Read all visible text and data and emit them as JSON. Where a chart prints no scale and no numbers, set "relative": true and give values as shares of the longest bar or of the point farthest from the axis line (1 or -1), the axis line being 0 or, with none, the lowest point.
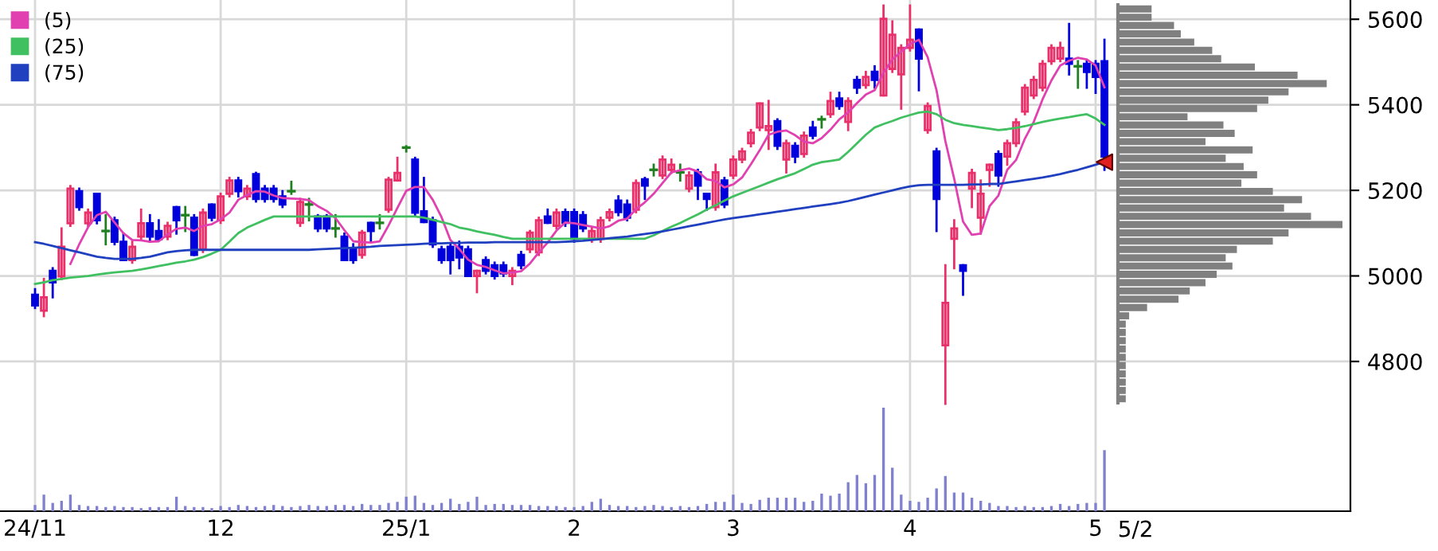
{
  "chart_data": [
    {
      "type": "candlestick",
      "categories": [
        "24/11",
        null,
        null,
        null,
        null,
        null,
        null,
        null,
        null,
        null,
        null,
        null,
        null,
        null,
        null,
        null,
        null,
        null,
        null,
        null,
        null,
        "12",
        null,
        null,
        null,
        null,
        null,
        null,
        null,
        null,
        null,
        null,
        null,
        null,
        null,
        null,
        null,
        null,
        null,
        null,
        null,
        null,
        "25/1",
        null,
        null,
        null,
        null,
        null,
        null,
        null,
        null,
        null,
        null,
        null,
        null,
        null,
        null,
        null,
        null,
        null,
        null,
        "2",
        null,
        null,
        null,
        null,
        null,
        null,
        null,
        null,
        null,
        null,
        null,
        null,
        null,
        null,
        null,
        null,
        null,
        "3",
        null,
        null,
        null,
        null,
        null,
        null,
        null,
        null,
        null,
        null,
        null,
        null,
        null,
        null,
        null,
        null,
        null,
        null,
        null,
        "4",
        null,
        null,
        null,
        null,
        null,
        null,
        null,
        null,
        null,
        null,
        null,
        null,
        null,
        null,
        null,
        null,
        null,
        null,
        null,
        null,
        "5",
        null
      ],
      "ohlc": [
        [
          4956,
          4969,
          4925,
          4931
        ],
        [
          4919,
          4993,
          4906,
          4950
        ],
        [
          5012,
          5018,
          4950,
          4985
        ],
        [
          4999,
          5111,
          4993,
          5068
        ],
        [
          5123,
          5210,
          5117,
          5204
        ],
        [
          5198,
          5204,
          5155,
          5161
        ],
        [
          5123,
          5155,
          5117,
          5148
        ],
        [
          5192,
          5192,
          5123,
          5130
        ],
        [
          5105,
          5142,
          5074,
          5105
        ],
        [
          5130,
          5136,
          5074,
          5080
        ],
        [
          5080,
          5099,
          5037,
          5037
        ],
        [
          5037,
          5080,
          5031,
          5068
        ],
        [
          5092,
          5155,
          5086,
          5123
        ],
        [
          5123,
          5142,
          5080,
          5092
        ],
        [
          5105,
          5130,
          5086,
          5086
        ],
        [
          5092,
          5124,
          5086,
          5117
        ],
        [
          5161,
          5161,
          5099,
          5130
        ],
        [
          5142,
          5161,
          5105,
          5142
        ],
        [
          5136,
          5142,
          5049,
          5049
        ],
        [
          5062,
          5155,
          5056,
          5148
        ],
        [
          5167,
          5167,
          5130,
          5136
        ],
        [
          5130,
          5192,
          5124,
          5186
        ],
        [
          5192,
          5229,
          5186,
          5223
        ],
        [
          5223,
          5229,
          5186,
          5198
        ],
        [
          5186,
          5210,
          5180,
          5204
        ],
        [
          5238,
          5241,
          5174,
          5180
        ],
        [
          5204,
          5210,
          5174,
          5180
        ],
        [
          5204,
          5210,
          5174,
          5180
        ],
        [
          5186,
          5198,
          5161,
          5167
        ],
        [
          5198,
          5220,
          5192,
          5198
        ],
        [
          5124,
          5180,
          5117,
          5173
        ],
        [
          5167,
          5180,
          5130,
          5167
        ],
        [
          5139,
          5142,
          5105,
          5111
        ],
        [
          5139,
          5142,
          5105,
          5111
        ],
        [
          5111,
          5142,
          5092,
          5111
        ],
        [
          5092,
          5099,
          5037,
          5037
        ],
        [
          5062,
          5074,
          5031,
          5037
        ],
        [
          5049,
          5105,
          5043,
          5101
        ],
        [
          5124,
          5124,
          5080,
          5105
        ],
        [
          5124,
          5142,
          5111,
          5124
        ],
        [
          5155,
          5229,
          5150,
          5225
        ],
        [
          5223,
          5276,
          5223,
          5241
        ],
        [
          5300,
          5303,
          5291,
          5300
        ],
        [
          5272,
          5276,
          5142,
          5148
        ],
        [
          5151,
          5229,
          5126,
          5126
        ],
        [
          5130,
          5136,
          5068,
          5074
        ],
        [
          5062,
          5068,
          5031,
          5037
        ],
        [
          5068,
          5074,
          5006,
          5037
        ],
        [
          5068,
          5080,
          5018,
          5043
        ],
        [
          5062,
          5068,
          5000,
          5000
        ],
        [
          5000,
          5012,
          4962,
          5012
        ],
        [
          5037,
          5043,
          5006,
          5012
        ],
        [
          5025,
          5031,
          4994,
          5000
        ],
        [
          5025,
          5031,
          5000,
          5006
        ],
        [
          5000,
          5018,
          4981,
          5012
        ],
        [
          5049,
          5056,
          5018,
          5025
        ],
        [
          5062,
          5105,
          5056,
          5101
        ],
        [
          5055,
          5136,
          5049,
          5130
        ],
        [
          5139,
          5155,
          5124,
          5124
        ],
        [
          5117,
          5155,
          5111,
          5148
        ],
        [
          5149,
          5155,
          5117,
          5124
        ],
        [
          5149,
          5155,
          5080,
          5087
        ],
        [
          5142,
          5149,
          5105,
          5111
        ],
        [
          5087,
          5111,
          5080,
          5105
        ],
        [
          5087,
          5136,
          5080,
          5130
        ],
        [
          5136,
          5155,
          5130,
          5149
        ],
        [
          5176,
          5186,
          5142,
          5149
        ],
        [
          5167,
          5176,
          5130,
          5136
        ],
        [
          5155,
          5223,
          5149,
          5217
        ],
        [
          5226,
          5229,
          5180,
          5211
        ],
        [
          5248,
          5260,
          5235,
          5248
        ],
        [
          5235,
          5279,
          5229,
          5272
        ],
        [
          5248,
          5272,
          5241,
          5260
        ],
        [
          5242,
          5260,
          5223,
          5242
        ],
        [
          5204,
          5242,
          5198,
          5235
        ],
        [
          5242,
          5248,
          5180,
          5211
        ],
        [
          5192,
          5192,
          5155,
          5180
        ],
        [
          5161,
          5260,
          5155,
          5242
        ],
        [
          5223,
          5229,
          5161,
          5167
        ],
        [
          5235,
          5279,
          5229,
          5272
        ],
        [
          5272,
          5297,
          5266,
          5291
        ],
        [
          5310,
          5341,
          5303,
          5335
        ],
        [
          5347,
          5403,
          5341,
          5403
        ],
        [
          5341,
          5409,
          5297,
          5350
        ],
        [
          5362,
          5366,
          5297,
          5304
        ],
        [
          5272,
          5316,
          5242,
          5310
        ],
        [
          5304,
          5310,
          5266,
          5279
        ],
        [
          5285,
          5335,
          5279,
          5328
        ],
        [
          5347,
          5360,
          5322,
          5328
        ],
        [
          5366,
          5372,
          5347,
          5366
        ],
        [
          5378,
          5428,
          5372,
          5409
        ],
        [
          5415,
          5428,
          5391,
          5397
        ],
        [
          5360,
          5415,
          5341,
          5409
        ],
        [
          5458,
          5465,
          5428,
          5440
        ],
        [
          5446,
          5477,
          5440,
          5465
        ],
        [
          5477,
          5490,
          5440,
          5458
        ],
        [
          5422,
          5632,
          5422,
          5601
        ],
        [
          5484,
          5595,
          5477,
          5564
        ],
        [
          5471,
          5539,
          5391,
          5533
        ],
        [
          5533,
          5632,
          5527,
          5552
        ],
        [
          5576,
          5576,
          5434,
          5508
        ],
        [
          5341,
          5403,
          5335,
          5397
        ],
        [
          5291,
          5297,
          5105,
          5180
        ],
        [
          4838,
          5025,
          4701,
          4937
        ],
        [
          5087,
          5130,
          5018,
          5111
        ],
        [
          5025,
          5025,
          4956,
          5012
        ],
        [
          5204,
          5248,
          5161,
          5241
        ],
        [
          5136,
          5223,
          5099,
          5192
        ],
        [
          5248,
          5260,
          5211,
          5260
        ],
        [
          5285,
          5291,
          5211,
          5235
        ],
        [
          5279,
          5316,
          5260,
          5310
        ],
        [
          5310,
          5366,
          5304,
          5359
        ],
        [
          5384,
          5446,
          5378,
          5440
        ],
        [
          5422,
          5465,
          5416,
          5458
        ],
        [
          5440,
          5502,
          5434,
          5496
        ],
        [
          5502,
          5539,
          5496,
          5533
        ],
        [
          5508,
          5545,
          5502,
          5533
        ],
        [
          5508,
          5589,
          5471,
          5496
        ],
        [
          5490,
          5502,
          5440,
          5490
        ],
        [
          5496,
          5502,
          5440,
          5477
        ],
        [
          5496,
          5502,
          5428,
          5465
        ],
        [
          5502,
          5552,
          5248,
          5279
        ]
      ],
      "colors": [
        "#0000dd",
        "#e8306a",
        "#0000dd",
        "#e8306a",
        "#e8306a",
        "#0000dd",
        "#e8306a",
        "#0000dd",
        "#208020",
        "#0000dd",
        "#0000dd",
        "#e8306a",
        "#e8306a",
        "#0000dd",
        "#0000dd",
        "#e8306a",
        "#0000dd",
        "#208020",
        "#0000dd",
        "#e8306a",
        "#0000dd",
        "#e8306a",
        "#e8306a",
        "#0000dd",
        "#e8306a",
        "#0000dd",
        "#0000dd",
        "#0000dd",
        "#0000dd",
        "#208020",
        "#e8306a",
        "#208020",
        "#0000dd",
        "#0000dd",
        "#208020",
        "#0000dd",
        "#0000dd",
        "#e8306a",
        "#0000dd",
        "#208020",
        "#e8306a",
        "#e8306a",
        "#208020",
        "#0000dd",
        "#0000dd",
        "#0000dd",
        "#0000dd",
        "#0000dd",
        "#0000dd",
        "#0000dd",
        "#e8306a",
        "#0000dd",
        "#0000dd",
        "#0000dd",
        "#e8306a",
        "#0000dd",
        "#e8306a",
        "#e8306a",
        "#0000dd",
        "#e8306a",
        "#0000dd",
        "#0000dd",
        "#0000dd",
        "#e8306a",
        "#e8306a",
        "#e8306a",
        "#0000dd",
        "#0000dd",
        "#e8306a",
        "#0000dd",
        "#208020",
        "#e8306a",
        "#e8306a",
        "#208020",
        "#e8306a",
        "#0000dd",
        "#0000dd",
        "#e8306a",
        "#0000dd",
        "#e8306a",
        "#e8306a",
        "#e8306a",
        "#e8306a",
        "#e8306a",
        "#0000dd",
        "#e8306a",
        "#0000dd",
        "#e8306a",
        "#0000dd",
        "#208020",
        "#e8306a",
        "#0000dd",
        "#e8306a",
        "#0000dd",
        "#e8306a",
        "#0000dd",
        "#e8306a",
        "#e8306a",
        "#e8306a",
        "#e8306a",
        "#0000dd",
        "#e8306a",
        "#0000dd",
        "#e8306a",
        "#e8306a",
        "#0000dd",
        "#e8306a",
        "#e8306a",
        "#e8306a",
        "#0000dd",
        "#e8306a",
        "#e8306a",
        "#e8306a",
        "#e8306a",
        "#e8306a",
        "#e8306a",
        "#e8306a",
        "#0000dd",
        "#208020",
        "#0000dd",
        "#0000dd",
        "#0000dd"
      ],
      "series": [
        {
          "name": "(5)",
          "type": "line",
          "color": "#e040b0",
          "values": [
            null,
            null,
            null,
            null,
            5028,
            5074,
            5114,
            5142,
            5150,
            5125,
            5100,
            5084,
            5083,
            5080,
            5081,
            5097,
            5110,
            5113,
            5105,
            5117,
            5121,
            5132,
            5148,
            5178,
            5189,
            5198,
            5197,
            5188,
            5182,
            5181,
            5180,
            5177,
            5163,
            5152,
            5135,
            5107,
            5081,
            5079,
            5078,
            5081,
            5118,
            5159,
            5199,
            5208,
            5208,
            5178,
            5137,
            5084,
            5063,
            5038,
            5026,
            5021,
            5013,
            5006,
            5008,
            5011,
            5029,
            5055,
            5078,
            5106,
            5125,
            5123,
            5119,
            5115,
            5111,
            5116,
            5129,
            5134,
            5156,
            5172,
            5192,
            5217,
            5242,
            5247,
            5251,
            5244,
            5226,
            5222,
            5207,
            5214,
            5230,
            5261,
            5294,
            5330,
            5337,
            5340,
            5329,
            5314,
            5310,
            5322,
            5342,
            5366,
            5382,
            5404,
            5424,
            5434,
            5475,
            5506,
            5524,
            5542,
            5552,
            5511,
            5434,
            5315,
            5227,
            5127,
            5096,
            5099,
            5163,
            5188,
            5248,
            5271,
            5321,
            5360,
            5413,
            5457,
            5492,
            5503,
            5510,
            5506,
            5492,
            5441
          ]
        },
        {
          "name": "(25)",
          "type": "line",
          "color": "#40c060",
          "values": [
            4981,
            4985,
            4990,
            4993,
            4996,
            4998,
            5000,
            5003,
            5006,
            5008,
            5010,
            5012,
            5015,
            5019,
            5023,
            5027,
            5031,
            5034,
            5038,
            5044,
            5052,
            5061,
            5080,
            5100,
            5113,
            5122,
            5131,
            5139,
            5139,
            5139,
            5139,
            5139,
            5139,
            5139,
            5139,
            5139,
            5139,
            5139,
            5139,
            5139,
            5139,
            5139,
            5139,
            5139,
            5136,
            5131,
            5126,
            5121,
            5113,
            5109,
            5104,
            5100,
            5096,
            5091,
            5087,
            5087,
            5087,
            5087,
            5087,
            5087,
            5087,
            5087,
            5087,
            5087,
            5087,
            5087,
            5087,
            5087,
            5087,
            5087,
            5095,
            5105,
            5115,
            5124,
            5134,
            5144,
            5155,
            5165,
            5176,
            5186,
            5194,
            5202,
            5210,
            5218,
            5226,
            5233,
            5240,
            5250,
            5260,
            5266,
            5269,
            5272,
            5290,
            5310,
            5330,
            5347,
            5355,
            5362,
            5370,
            5376,
            5382,
            5384,
            5378,
            5365,
            5357,
            5353,
            5350,
            5347,
            5344,
            5341,
            5343,
            5346,
            5350,
            5355,
            5360,
            5364,
            5368,
            5371,
            5375,
            5378,
            5368,
            5353
          ]
        },
        {
          "name": "(75)",
          "type": "line",
          "color": "#2040c0",
          "values": [
            5079,
            5075,
            5070,
            5065,
            5060,
            5055,
            5050,
            5045,
            5042,
            5040,
            5040,
            5040,
            5042,
            5045,
            5050,
            5055,
            5058,
            5060,
            5061,
            5061,
            5061,
            5061,
            5061,
            5061,
            5061,
            5061,
            5061,
            5061,
            5061,
            5061,
            5061,
            5061,
            5062,
            5063,
            5064,
            5065,
            5066,
            5067,
            5068,
            5070,
            5071,
            5072,
            5073,
            5074,
            5075,
            5076,
            5076,
            5077,
            5077,
            5078,
            5078,
            5078,
            5079,
            5079,
            5079,
            5079,
            5079,
            5079,
            5079,
            5079,
            5080,
            5081,
            5082,
            5084,
            5086,
            5088,
            5090,
            5092,
            5095,
            5098,
            5101,
            5104,
            5108,
            5112,
            5116,
            5120,
            5124,
            5128,
            5132,
            5135,
            5138,
            5141,
            5144,
            5147,
            5150,
            5153,
            5156,
            5159,
            5162,
            5165,
            5168,
            5171,
            5175,
            5180,
            5185,
            5190,
            5195,
            5200,
            5205,
            5209,
            5212,
            5213,
            5213,
            5213,
            5213,
            5213,
            5214,
            5214,
            5215,
            5215,
            5218,
            5221,
            5224,
            5227,
            5230,
            5234,
            5238,
            5243,
            5248,
            5254,
            5260,
            5266
          ]
        },
        {
          "type": "scatter",
          "marker": "triangle",
          "color": "#e02020",
          "values": [
            null,
            null,
            null,
            null,
            null,
            null,
            null,
            null,
            null,
            null,
            null,
            null,
            null,
            null,
            null,
            null,
            null,
            null,
            null,
            null,
            null,
            null,
            null,
            null,
            null,
            null,
            null,
            null,
            null,
            null,
            null,
            null,
            null,
            null,
            null,
            null,
            null,
            null,
            null,
            null,
            null,
            null,
            null,
            null,
            null,
            null,
            null,
            null,
            null,
            null,
            null,
            null,
            null,
            null,
            null,
            null,
            null,
            null,
            null,
            null,
            null,
            null,
            null,
            null,
            null,
            null,
            null,
            null,
            null,
            null,
            null,
            null,
            null,
            null,
            null,
            null,
            null,
            null,
            null,
            null,
            null,
            null,
            null,
            null,
            null,
            null,
            null,
            null,
            null,
            null,
            null,
            null,
            null,
            null,
            null,
            null,
            null,
            null,
            null,
            null,
            null,
            null,
            null,
            null,
            null,
            null,
            null,
            null,
            null,
            null,
            null,
            null,
            null,
            null,
            null,
            null,
            null,
            null,
            null,
            null,
            null,
            5266
          ]
        }
      ],
      "ylim": [
        4450,
        5645
      ],
      "yticks": [
        4800,
        5000,
        5200,
        5400,
        5600
      ],
      "grid": true,
      "legend": "top left",
      "annotations": [
        "5/2"
      ]
    },
    {
      "type": "bar",
      "relative": true,
      "color": "#8080d0",
      "categories": [
        null,
        null,
        null,
        null,
        null,
        null,
        null,
        null,
        null,
        null,
        null,
        null,
        null,
        null,
        null,
        null,
        null,
        null,
        null,
        null,
        null,
        null,
        null,
        null,
        null,
        null,
        null,
        null,
        null,
        null,
        null,
        null,
        null,
        null,
        null,
        null,
        null,
        null,
        null,
        null,
        null,
        null,
        null,
        null,
        null,
        null,
        null,
        null,
        null,
        null,
        null,
        null,
        null,
        null,
        null,
        null,
        null,
        null,
        null,
        null,
        null,
        null,
        null,
        null,
        null,
        null,
        null,
        null,
        null,
        null,
        null,
        null,
        null,
        null,
        null,
        null,
        null,
        null,
        null,
        null,
        null,
        null,
        null,
        null,
        null,
        null,
        null,
        null,
        null,
        null,
        null,
        null,
        null,
        null,
        null,
        null,
        null,
        null,
        null,
        null,
        null,
        null,
        null,
        null,
        null,
        null,
        null,
        null,
        null,
        null,
        null,
        null,
        null,
        null,
        null,
        null,
        null,
        null,
        null,
        null,
        null,
        null
      ],
      "values": [
        0.06,
        0.16,
        0.08,
        0.1,
        0.16,
        0.06,
        0.05,
        0.05,
        0.04,
        0.05,
        0.04,
        0.04,
        0.03,
        0.04,
        0.04,
        0.04,
        0.14,
        0.05,
        0.04,
        0.04,
        0.03,
        0.05,
        0.04,
        0.06,
        0.05,
        0.04,
        0.05,
        0.06,
        0.05,
        0.04,
        0.05,
        0.06,
        0.05,
        0.05,
        0.06,
        0.06,
        0.05,
        0.07,
        0.06,
        0.06,
        0.08,
        0.09,
        0.14,
        0.15,
        0.08,
        0.06,
        0.08,
        0.12,
        0.07,
        0.09,
        0.14,
        0.06,
        0.07,
        0.07,
        0.06,
        0.06,
        0.06,
        0.05,
        0.05,
        0.05,
        0.04,
        0.04,
        0.05,
        0.09,
        0.12,
        0.06,
        0.05,
        0.05,
        0.04,
        0.05,
        0.06,
        0.05,
        0.04,
        0.05,
        0.04,
        0.05,
        0.07,
        0.09,
        0.09,
        0.16,
        0.08,
        0.07,
        0.11,
        0.13,
        0.13,
        0.13,
        0.13,
        0.09,
        0.1,
        0.17,
        0.15,
        0.17,
        0.28,
        0.35,
        0.27,
        0.35,
        1.0,
        0.42,
        0.16,
        0.1,
        0.09,
        0.13,
        0.22,
        0.34,
        0.18,
        0.18,
        0.13,
        0.1,
        0.08,
        0.05,
        0.05,
        0.04,
        0.05,
        0.04,
        0.04,
        0.05,
        0.07,
        0.05,
        0.07,
        0.08,
        0.08,
        0.59
      ],
      "orientation": "vertical"
    },
    {
      "type": "bar",
      "orientation": "horizontal",
      "relative": true,
      "color": "#808080",
      "categories": [
        null,
        null,
        null,
        null,
        null,
        null,
        null,
        null,
        null,
        null,
        null,
        null,
        null,
        null,
        null,
        null,
        null,
        null,
        null,
        null,
        null,
        null,
        null,
        null,
        null,
        null,
        null,
        null,
        null,
        null,
        null,
        null,
        null,
        null,
        null,
        null,
        null,
        null,
        null,
        null,
        null,
        null,
        null,
        null,
        null,
        null,
        null,
        null
      ],
      "values": [
        0.15,
        0.15,
        0.25,
        0.28,
        0.34,
        0.42,
        0.46,
        0.61,
        0.8,
        0.93,
        0.76,
        0.67,
        0.62,
        0.31,
        0.47,
        0.52,
        0.39,
        0.6,
        0.48,
        0.56,
        0.62,
        0.55,
        0.69,
        0.82,
        0.74,
        0.86,
        1.0,
        0.76,
        0.69,
        0.53,
        0.48,
        0.51,
        0.44,
        0.39,
        0.32,
        0.27,
        0.13,
        0.05,
        0.035,
        0.035,
        0.035,
        0.035,
        0.035,
        0.035,
        0.035,
        0.035,
        0.035,
        0.035
      ]
    }
  ]
}
